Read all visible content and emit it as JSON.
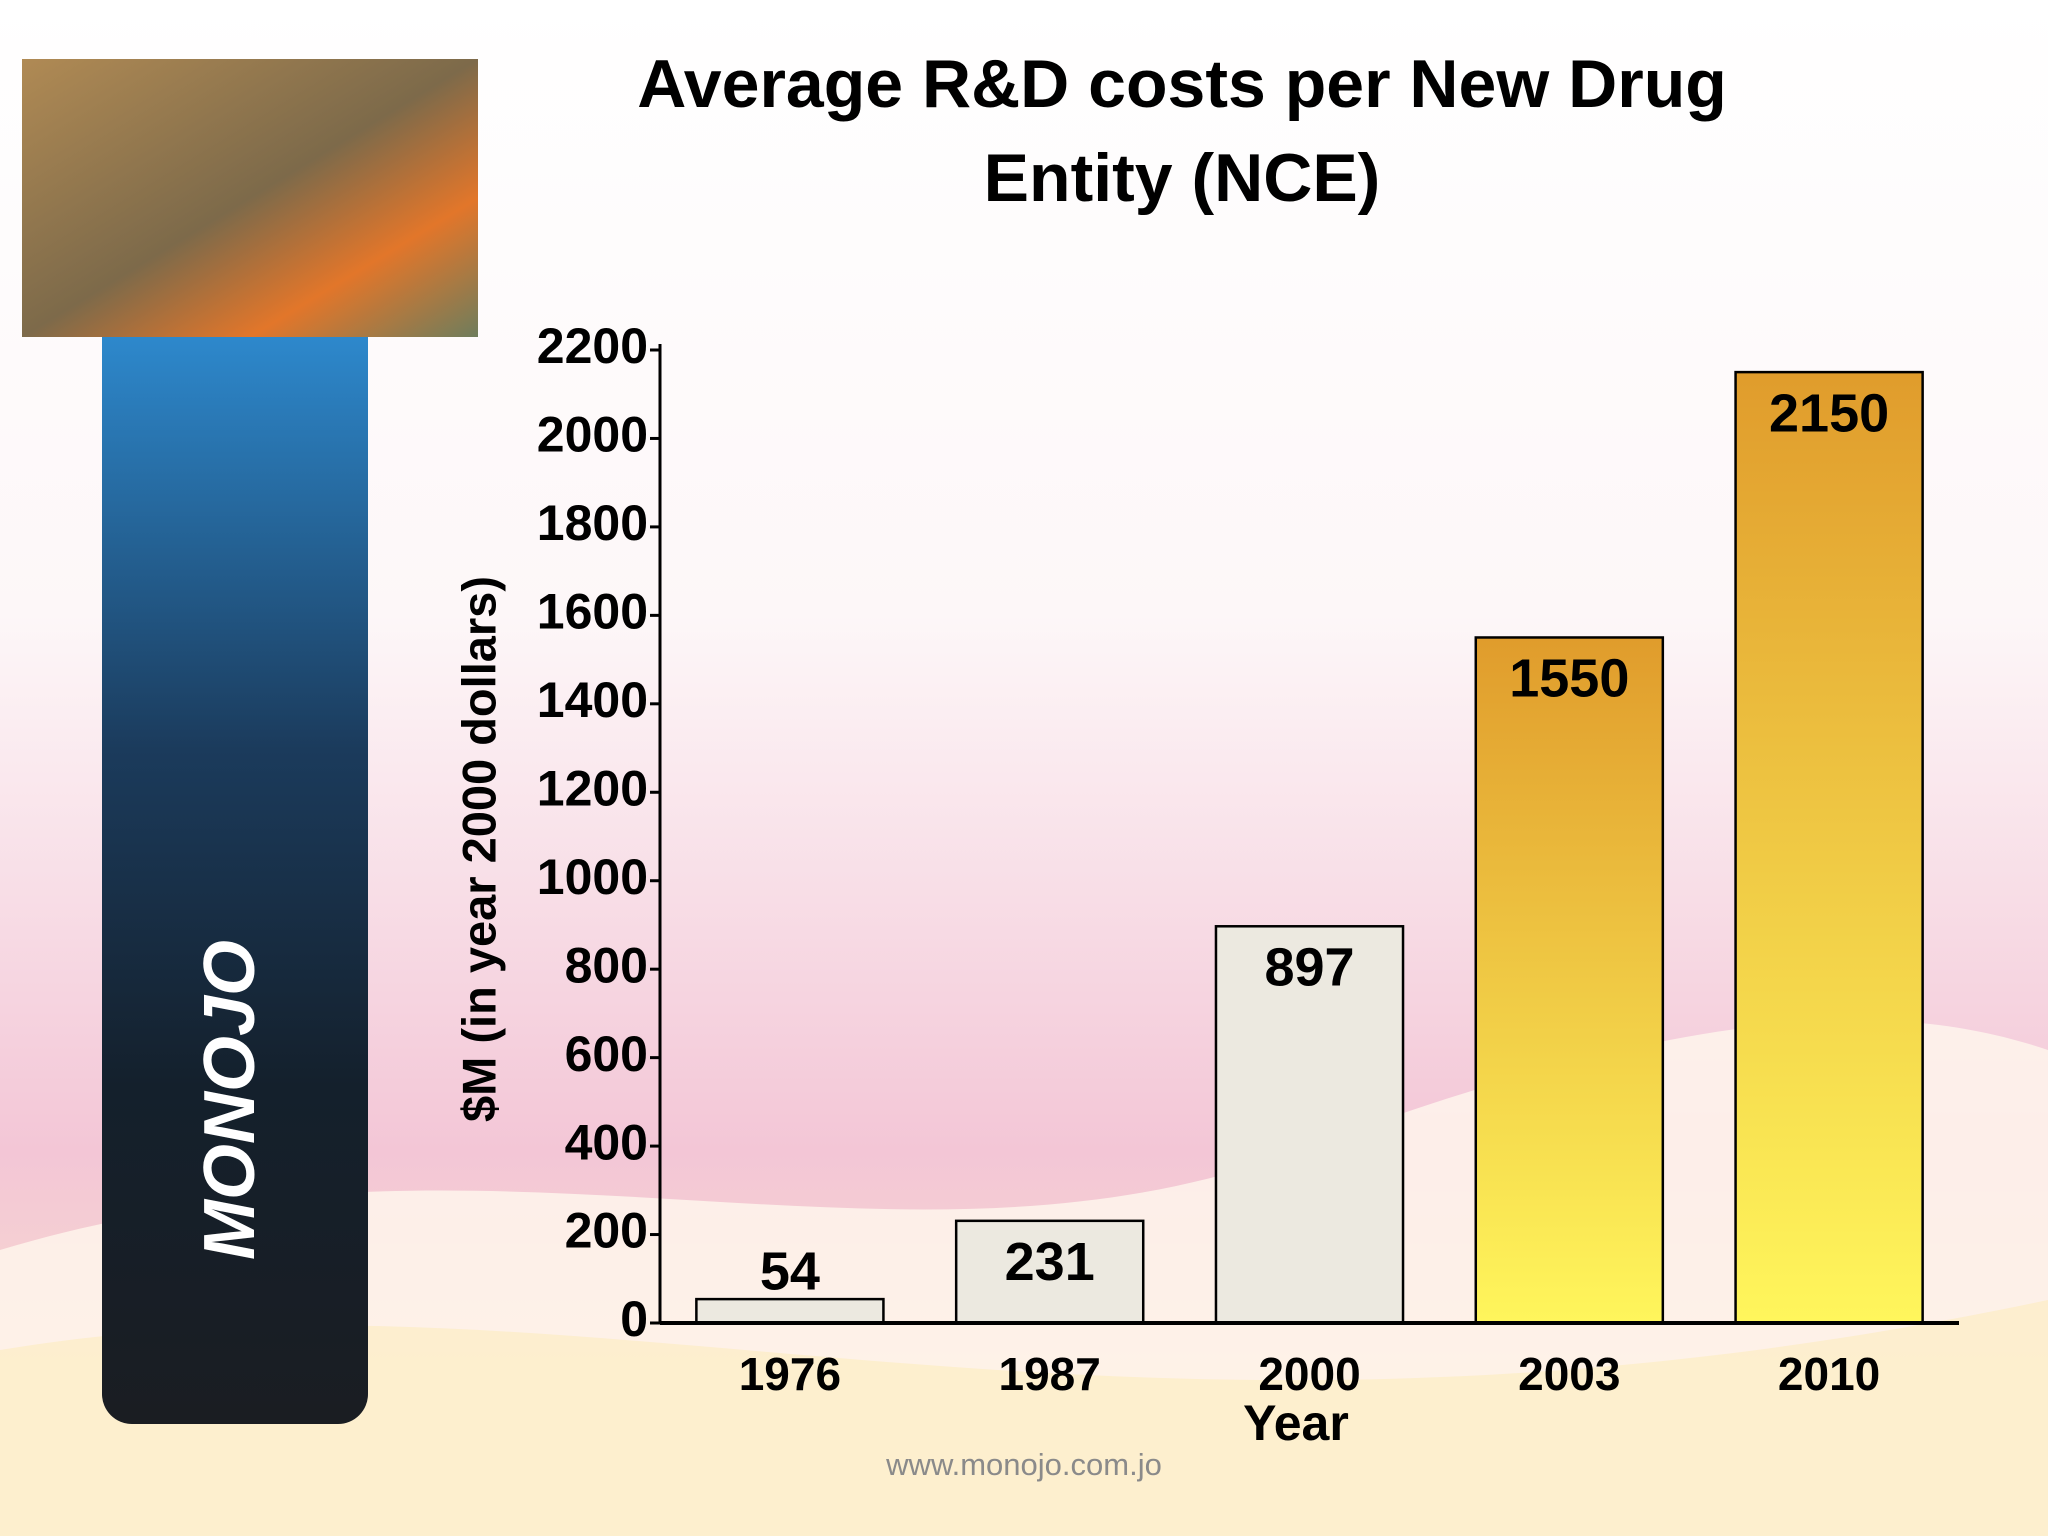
{
  "logo": {
    "text": "MONOJO"
  },
  "footer": "www.monojo.com.jo",
  "chart_data": {
    "type": "bar",
    "title": [
      "Average R&D costs per New Drug",
      "Entity (NCE)"
    ],
    "x_label": "Year",
    "y_label": "$M (in year 2000 dollars)",
    "categories": [
      "1976",
      "1987",
      "2000",
      "2003",
      "2010"
    ],
    "values": [
      54,
      231,
      897,
      1550,
      2150
    ],
    "colors": [
      "#ece9e0",
      "#ece9e0",
      "#ece9e0",
      "#e09c2c",
      "#e09c2c"
    ],
    "ylim": [
      0,
      2200
    ],
    "yticks": [
      0,
      200,
      400,
      600,
      800,
      1000,
      1200,
      1400,
      1600,
      1800,
      2000,
      2200
    ],
    "grid": false
  }
}
